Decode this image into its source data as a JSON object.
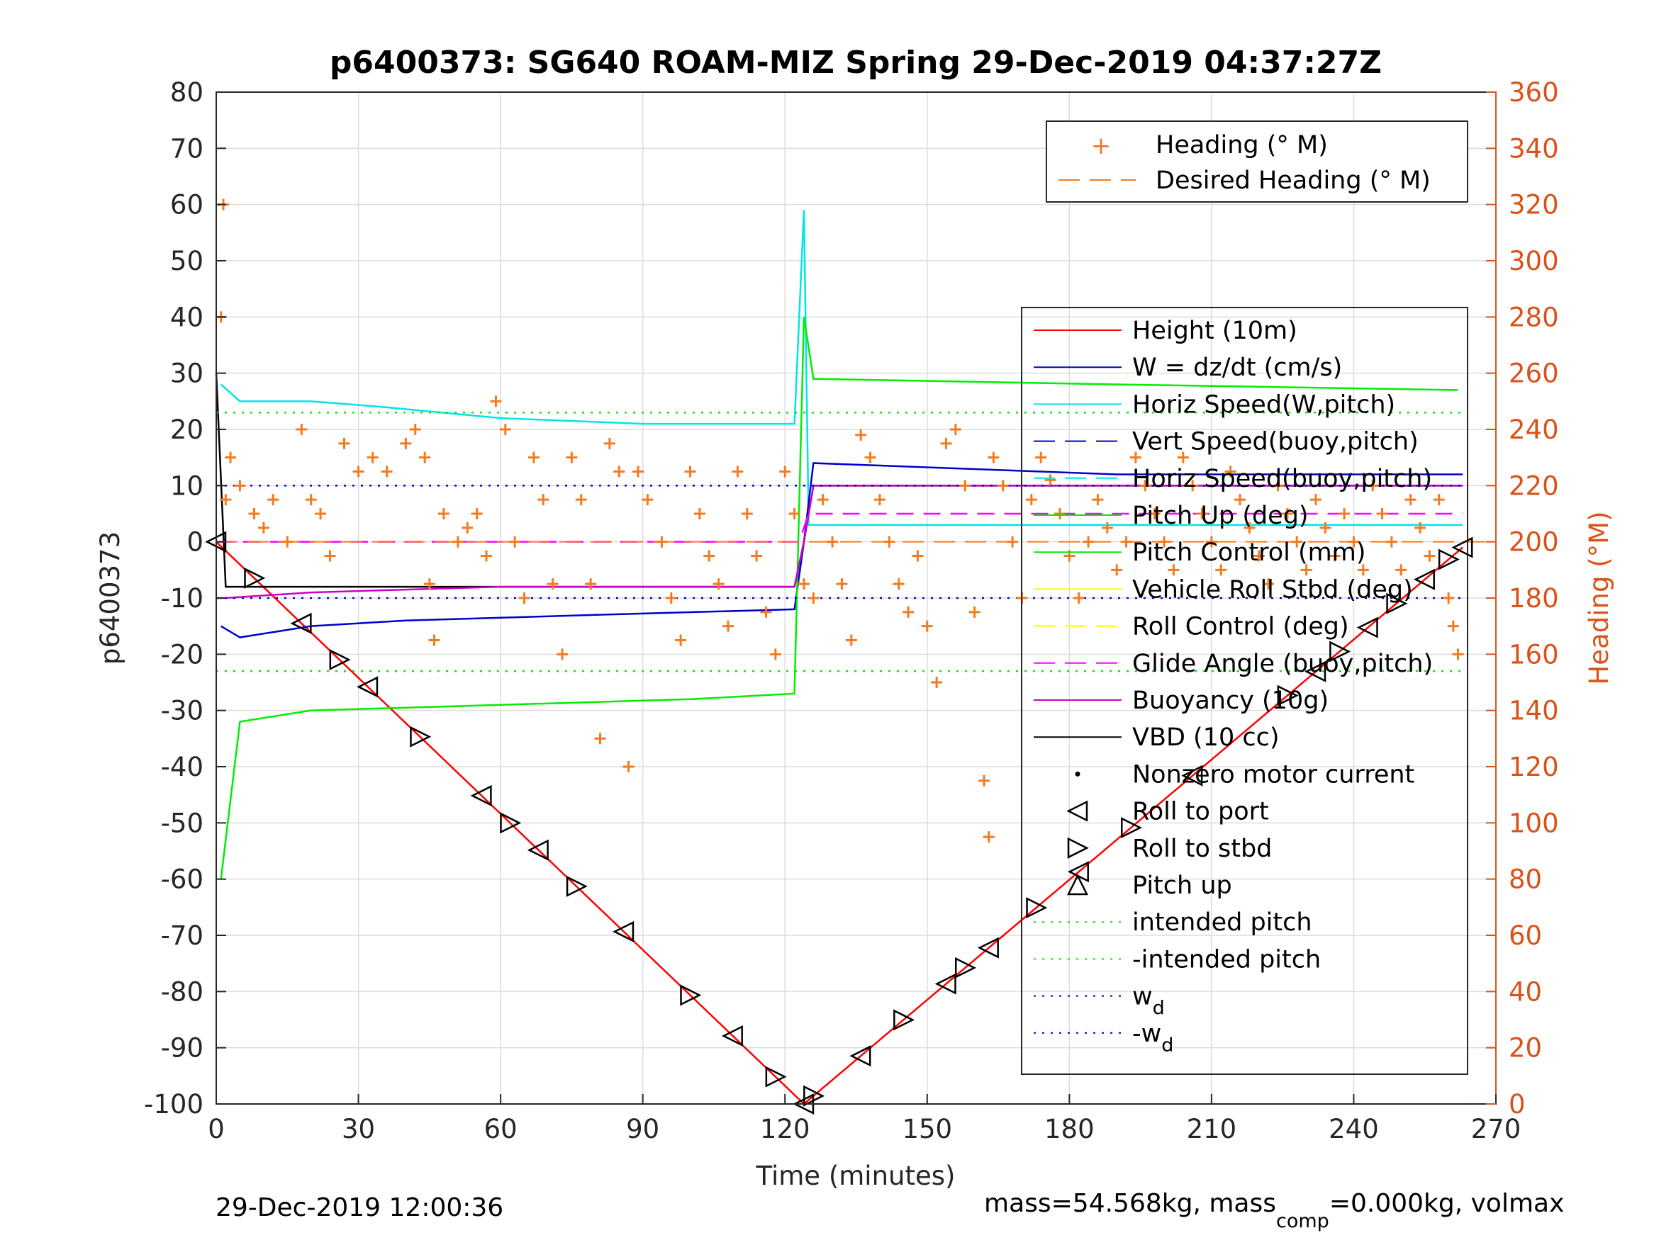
{
  "chart_data": {
    "type": "line",
    "title": "p6400373: SG640 ROAM-MIZ Spring 29-Dec-2019 04:37:27Z",
    "xlabel": "Time (minutes)",
    "ylabel": "p6400373",
    "y2label": "Heading (°M)",
    "xlim": [
      0,
      270
    ],
    "ylim": [
      -100,
      80
    ],
    "y2lim": [
      0,
      360
    ],
    "xticks": [
      "0",
      "30",
      "60",
      "90",
      "120",
      "150",
      "180",
      "210",
      "240",
      "270"
    ],
    "yticks": [
      "80",
      "70",
      "60",
      "50",
      "40",
      "30",
      "20",
      "10",
      "0",
      "-10",
      "-20",
      "-30",
      "-40",
      "-50",
      "-60",
      "-70",
      "-80",
      "-90",
      "-100"
    ],
    "y2ticks": [
      "360",
      "340",
      "320",
      "300",
      "280",
      "260",
      "240",
      "220",
      "200",
      "180",
      "160",
      "140",
      "120",
      "100",
      "80",
      "60",
      "40",
      "20",
      "0"
    ],
    "grid": true,
    "legend_heading": [
      "Heading (° M)",
      "Desired Heading (° M)"
    ],
    "legend_main": [
      {
        "label": "Height (10m)",
        "color": "#ff0000",
        "style": "solid"
      },
      {
        "label": "W = dz/dt (cm/s)",
        "color": "#0000cc",
        "style": "solid"
      },
      {
        "label": "Horiz Speed(W,pitch)",
        "color": "#00e5e5",
        "style": "solid"
      },
      {
        "label": "Vert Speed(buoy,pitch)",
        "color": "#0000cc",
        "style": "dashed"
      },
      {
        "label": "Horiz Speed(buoy,pitch)",
        "color": "#00e5e5",
        "style": "dashed"
      },
      {
        "label": "Pitch Up (deg)",
        "color": "#00ee00",
        "style": "solid"
      },
      {
        "label": "Pitch Control (mm)",
        "color": "#00ee00",
        "style": "solid"
      },
      {
        "label": "Vehicle Roll Stbd (deg)",
        "color": "#ffff00",
        "style": "solid"
      },
      {
        "label": "Roll Control (deg)",
        "color": "#ffff00",
        "style": "dashed"
      },
      {
        "label": "Glide Angle (buoy,pitch)",
        "color": "#ff00ff",
        "style": "dashed"
      },
      {
        "label": "Buoyancy (10g)",
        "color": "#cc00cc",
        "style": "solid"
      },
      {
        "label": "VBD (10 cc)",
        "color": "#000000",
        "style": "solid"
      },
      {
        "label": "Nonzero motor current",
        "color": "#000000",
        "style": "dot"
      },
      {
        "label": "Roll to port",
        "color": "#000000",
        "style": "tri-left"
      },
      {
        "label": "Roll to stbd",
        "color": "#000000",
        "style": "tri-right"
      },
      {
        "label": "Pitch up",
        "color": "#000000",
        "style": "tri-up"
      },
      {
        "label": "intended pitch",
        "color": "#00ee00",
        "style": "dotted"
      },
      {
        "label": "-intended pitch",
        "color": "#00ee00",
        "style": "dotted"
      },
      {
        "label": "w",
        "sub": "d",
        "color": "#0000cc",
        "style": "dotted"
      },
      {
        "label": "-w",
        "sub": "d",
        "color": "#0000cc",
        "style": "dotted"
      }
    ],
    "series": [
      {
        "name": "Height (10m)",
        "x": [
          0,
          124,
          263
        ],
        "y": [
          0,
          -100,
          -1
        ]
      },
      {
        "name": "Horiz Speed(W,pitch)",
        "x": [
          1,
          5,
          20,
          35,
          60,
          90,
          110,
          122,
          124,
          125,
          130,
          190,
          263
        ],
        "y": [
          28,
          25,
          25,
          24,
          22,
          21,
          21,
          21,
          59,
          3,
          3,
          3,
          3
        ]
      },
      {
        "name": "W = dz/dt (cm/s)",
        "x": [
          1,
          5,
          20,
          40,
          80,
          122,
          124,
          126,
          190,
          263
        ],
        "y": [
          -15,
          -17,
          -15,
          -14,
          -13,
          -12,
          0,
          14,
          12,
          12
        ]
      },
      {
        "name": "Pitch Up (deg)",
        "x": [
          1,
          5,
          20,
          60,
          100,
          122,
          124,
          126,
          190,
          262
        ],
        "y": [
          -60,
          -32,
          -30,
          -29,
          -28,
          -27,
          40,
          29,
          28,
          27
        ]
      },
      {
        "name": "VBD (10 cc)",
        "x": [
          0,
          2,
          20,
          60,
          122,
          124,
          126,
          263
        ],
        "y": [
          30,
          -8,
          -8,
          -8,
          -8,
          0,
          10,
          10
        ]
      },
      {
        "name": "Buoyancy (10g)",
        "x": [
          0,
          2,
          20,
          60,
          122,
          124,
          126,
          263
        ],
        "y": [
          -10,
          -10,
          -9,
          -8,
          -8,
          0,
          10,
          10
        ]
      },
      {
        "name": "intended pitch",
        "x": [
          0,
          263
        ],
        "y": [
          23,
          23
        ]
      },
      {
        "name": "-intended pitch",
        "x": [
          0,
          263
        ],
        "y": [
          -23,
          -23
        ]
      },
      {
        "name": "w_d",
        "x": [
          0,
          263
        ],
        "y": [
          10,
          10
        ]
      },
      {
        "name": "-w_d",
        "x": [
          0,
          263
        ],
        "y": [
          -10,
          -10
        ]
      },
      {
        "name": "Glide Angle (buoy,pitch)",
        "x": [
          0,
          123,
          125,
          263
        ],
        "y": [
          0,
          0,
          5,
          5
        ]
      }
    ],
    "heading_points": [
      [
        1,
        280
      ],
      [
        1.5,
        320
      ],
      [
        2,
        215
      ],
      [
        3,
        230
      ],
      [
        5,
        220
      ],
      [
        8,
        210
      ],
      [
        10,
        205
      ],
      [
        12,
        215
      ],
      [
        15,
        200
      ],
      [
        18,
        240
      ],
      [
        20,
        215
      ],
      [
        22,
        210
      ],
      [
        24,
        195
      ],
      [
        27,
        235
      ],
      [
        30,
        225
      ],
      [
        33,
        230
      ],
      [
        36,
        225
      ],
      [
        40,
        235
      ],
      [
        42,
        240
      ],
      [
        44,
        230
      ],
      [
        45,
        185
      ],
      [
        46,
        165
      ],
      [
        48,
        210
      ],
      [
        51,
        200
      ],
      [
        53,
        205
      ],
      [
        55,
        210
      ],
      [
        57,
        195
      ],
      [
        59,
        250
      ],
      [
        61,
        240
      ],
      [
        63,
        200
      ],
      [
        65,
        180
      ],
      [
        67,
        230
      ],
      [
        69,
        215
      ],
      [
        71,
        185
      ],
      [
        73,
        160
      ],
      [
        75,
        230
      ],
      [
        77,
        215
      ],
      [
        79,
        185
      ],
      [
        81,
        130
      ],
      [
        83,
        235
      ],
      [
        85,
        225
      ],
      [
        87,
        120
      ],
      [
        89,
        225
      ],
      [
        91,
        215
      ],
      [
        94,
        200
      ],
      [
        96,
        180
      ],
      [
        98,
        165
      ],
      [
        100,
        225
      ],
      [
        102,
        210
      ],
      [
        104,
        195
      ],
      [
        106,
        185
      ],
      [
        108,
        170
      ],
      [
        110,
        225
      ],
      [
        112,
        210
      ],
      [
        114,
        195
      ],
      [
        116,
        175
      ],
      [
        118,
        160
      ],
      [
        120,
        225
      ],
      [
        122,
        210
      ],
      [
        124,
        185
      ],
      [
        126,
        180
      ],
      [
        128,
        215
      ],
      [
        130,
        200
      ],
      [
        132,
        185
      ],
      [
        134,
        165
      ],
      [
        136,
        238
      ],
      [
        138,
        230
      ],
      [
        140,
        215
      ],
      [
        142,
        200
      ],
      [
        144,
        185
      ],
      [
        146,
        175
      ],
      [
        148,
        195
      ],
      [
        150,
        170
      ],
      [
        152,
        150
      ],
      [
        154,
        235
      ],
      [
        156,
        240
      ],
      [
        158,
        220
      ],
      [
        160,
        175
      ],
      [
        162,
        115
      ],
      [
        163,
        95
      ],
      [
        164,
        230
      ],
      [
        166,
        220
      ],
      [
        168,
        200
      ],
      [
        170,
        180
      ],
      [
        172,
        215
      ],
      [
        174,
        230
      ],
      [
        176,
        222
      ],
      [
        178,
        210
      ],
      [
        180,
        195
      ],
      [
        182,
        180
      ],
      [
        184,
        200
      ],
      [
        186,
        215
      ],
      [
        188,
        205
      ],
      [
        190,
        190
      ],
      [
        192,
        200
      ],
      [
        194,
        230
      ],
      [
        196,
        220
      ],
      [
        198,
        210
      ],
      [
        200,
        200
      ],
      [
        202,
        190
      ],
      [
        204,
        230
      ],
      [
        206,
        220
      ],
      [
        208,
        210
      ],
      [
        210,
        200
      ],
      [
        212,
        190
      ],
      [
        214,
        225
      ],
      [
        216,
        215
      ],
      [
        218,
        205
      ],
      [
        220,
        195
      ],
      [
        222,
        185
      ],
      [
        224,
        220
      ],
      [
        226,
        210
      ],
      [
        228,
        200
      ],
      [
        230,
        190
      ],
      [
        232,
        215
      ],
      [
        234,
        205
      ],
      [
        236,
        195
      ],
      [
        238,
        210
      ],
      [
        240,
        200
      ],
      [
        242,
        190
      ],
      [
        244,
        220
      ],
      [
        246,
        210
      ],
      [
        248,
        200
      ],
      [
        250,
        190
      ],
      [
        252,
        215
      ],
      [
        254,
        205
      ],
      [
        256,
        195
      ],
      [
        258,
        215
      ],
      [
        260,
        180
      ],
      [
        261,
        170
      ],
      [
        262,
        160
      ]
    ],
    "desired_heading": 200,
    "markers": [
      0,
      8,
      18,
      26,
      32,
      43,
      56,
      62,
      68,
      76,
      86,
      100,
      109,
      118,
      124,
      126,
      136,
      145,
      154,
      158,
      163,
      173,
      182,
      193,
      206,
      226,
      232,
      237,
      243,
      249,
      255,
      260,
      263
    ]
  },
  "footer": {
    "timestamp": "29-Dec-2019 12:00:36",
    "mass_prefix": "mass=54.568kg, mass",
    "mass_sub": "comp",
    "mass_suffix": "=0.000kg, volmax"
  }
}
